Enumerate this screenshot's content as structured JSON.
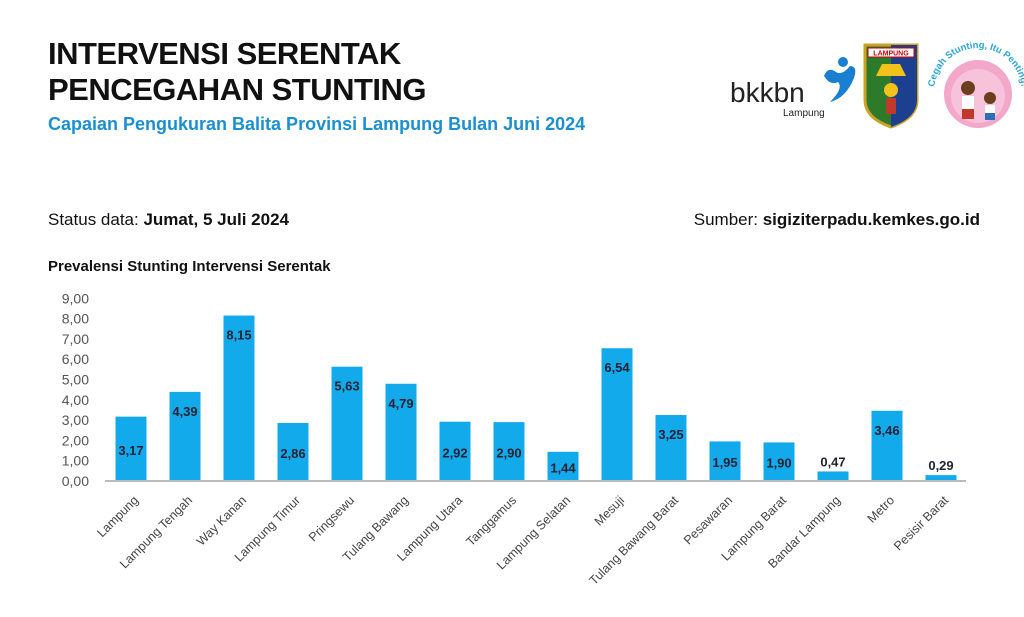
{
  "header": {
    "title_line1": "INTERVENSI SERENTAK",
    "title_line2": "PENCEGAHAN STUNTING",
    "subtitle": "Capaian Pengukuran Balita Provinsi Lampung Bulan Juni 2024"
  },
  "logos": {
    "bkkbn": "bkkbn",
    "bkkbn_sub": "Lampung",
    "lampung_crest": "LAMPUNG",
    "campaign": "Cegah Stunting, Itu Penting!"
  },
  "status": {
    "label": "Status data: ",
    "value": "Jumat, 5 Juli 2024"
  },
  "source": {
    "label": "Sumber: ",
    "value": "sigiziterpadu.kemkes.go.id"
  },
  "colors": {
    "bar": "#12aaeb",
    "subtitle": "#1b8fd0"
  },
  "chart_data": {
    "type": "bar",
    "title": "Prevalensi Stunting Intervensi Serentak",
    "categories": [
      "Lampung",
      "Lampung Tengah",
      "Way Kanan",
      "Lampung Timur",
      "Pringsewu",
      "Tulang Bawang",
      "Lampung Utara",
      "Tanggamus",
      "Lampung Selatan",
      "Mesuji",
      "Tulang Bawang Barat",
      "Pesawaran",
      "Lampung Barat",
      "Bandar Lampung",
      "Metro",
      "Pesisir Barat"
    ],
    "values": [
      3.17,
      4.39,
      8.15,
      2.86,
      5.63,
      4.79,
      2.92,
      2.9,
      1.44,
      6.54,
      3.25,
      1.95,
      1.9,
      0.47,
      3.46,
      0.29
    ],
    "labels": [
      "3,17",
      "4,39",
      "8,15",
      "2,86",
      "5,63",
      "4,79",
      "2,92",
      "2,90",
      "1,44",
      "6,54",
      "3,25",
      "1,95",
      "1,90",
      "0,47",
      "3,46",
      "0,29"
    ],
    "yticks": [
      "0,00",
      "1,00",
      "2,00",
      "3,00",
      "4,00",
      "5,00",
      "6,00",
      "7,00",
      "8,00",
      "9,00"
    ],
    "ylim": [
      0,
      9
    ],
    "grid": false,
    "legend": "none"
  }
}
